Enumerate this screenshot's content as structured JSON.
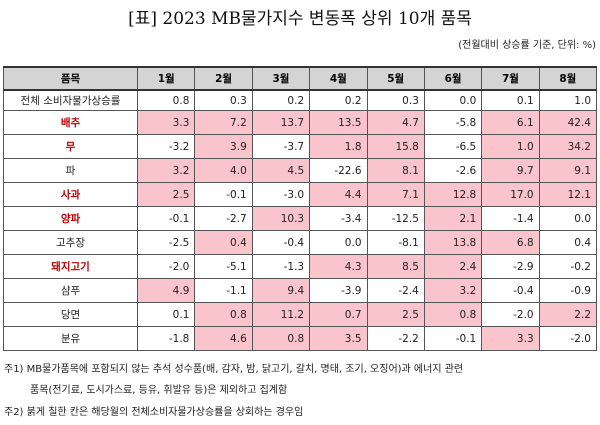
{
  "title": "[표] 2023 MB물가지수 변동폭 상위 10개 품목",
  "unit": "(전월대비 상승률 기준, 단위: %)",
  "headers": [
    "품목",
    "1월",
    "2월",
    "3월",
    "4월",
    "5월",
    "6월",
    "7월",
    "8월"
  ],
  "total": {
    "name": "전체 소비자물가상승률",
    "values": [
      0.8,
      0.3,
      0.2,
      0.2,
      0.3,
      0.0,
      0.1,
      1.0
    ]
  },
  "rows": [
    {
      "name": "배추",
      "red": true,
      "values": [
        3.3,
        7.2,
        13.7,
        13.5,
        4.7,
        -5.8,
        6.1,
        42.4
      ]
    },
    {
      "name": "무",
      "red": true,
      "values": [
        -3.2,
        3.9,
        -3.7,
        1.8,
        15.8,
        -6.5,
        1.0,
        34.2
      ]
    },
    {
      "name": "파",
      "red": false,
      "values": [
        3.2,
        4.0,
        4.5,
        -22.6,
        8.1,
        -2.6,
        9.7,
        9.1
      ]
    },
    {
      "name": "사과",
      "red": true,
      "values": [
        2.5,
        -0.1,
        -3.0,
        4.4,
        7.1,
        12.8,
        17.0,
        12.1
      ]
    },
    {
      "name": "양파",
      "red": true,
      "values": [
        -0.1,
        -2.7,
        10.3,
        -3.4,
        -12.5,
        2.1,
        -1.4,
        0.0
      ]
    },
    {
      "name": "고추장",
      "red": false,
      "values": [
        -2.5,
        0.4,
        -0.4,
        0.0,
        -8.1,
        13.8,
        6.8,
        0.4
      ]
    },
    {
      "name": "돼지고기",
      "red": true,
      "values": [
        -2.0,
        -5.1,
        -1.3,
        4.3,
        8.5,
        2.4,
        -2.9,
        -0.2
      ]
    },
    {
      "name": "샴푸",
      "red": false,
      "values": [
        4.9,
        -1.1,
        9.4,
        -3.9,
        -2.4,
        3.2,
        -0.4,
        -0.9
      ]
    },
    {
      "name": "당면",
      "red": false,
      "values": [
        0.1,
        0.8,
        11.2,
        0.7,
        2.5,
        0.8,
        -2.0,
        2.2
      ]
    },
    {
      "name": "분유",
      "red": false,
      "values": [
        -1.8,
        4.6,
        0.8,
        3.5,
        -2.2,
        -0.1,
        3.3,
        -2.0
      ]
    }
  ],
  "notes": [
    "주1) MB물가품목에 포함되지 않는 추석 성수품(배, 감자, 밤, 닭고기, 갈치, 명태, 조기, 오징어)과 에너지 관련",
    "품목(전기료, 도시가스료, 등유, 휘발유 등)은 제외하고 집계함",
    "주2) 붉게 칠한 칸은 해당월의 전체소비자물가상승률을 상회하는 경우임"
  ],
  "colors": {
    "highlight": "#fac4cc",
    "red_label": "#c00000",
    "header_bg": "#d4d4d4"
  }
}
